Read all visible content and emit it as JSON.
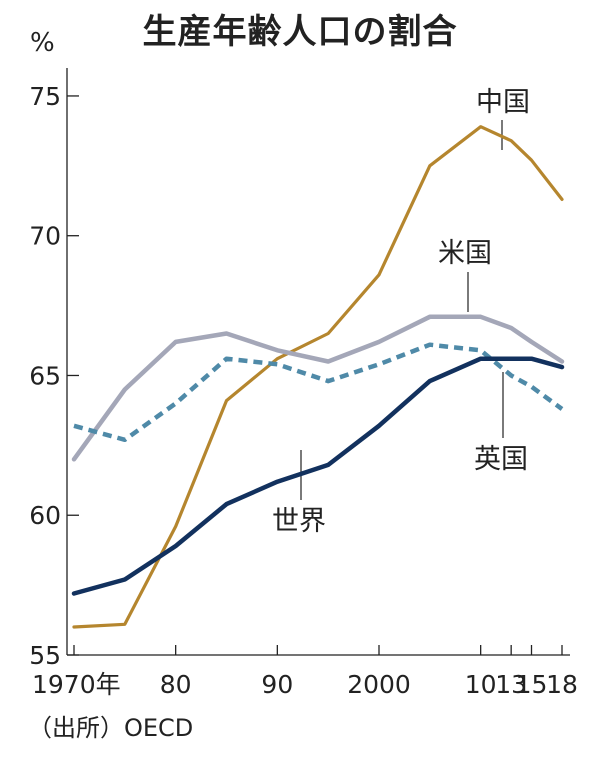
{
  "title": "生産年齢人口の割合",
  "unit": "%",
  "source": "（出所）OECD",
  "chart_data": {
    "type": "line",
    "title": "生産年齢人口の割合",
    "ylabel": "%",
    "xlabel": "",
    "x": [
      1970,
      1975,
      1980,
      1985,
      1990,
      1995,
      2000,
      2005,
      2010,
      2013,
      2015,
      2018
    ],
    "x_ticks": [
      1970,
      1980,
      1990,
      2000,
      2010,
      2013,
      2015,
      2018
    ],
    "x_tick_labels": [
      "1970年",
      "80",
      "90",
      "2000",
      "10",
      "13",
      "15",
      "18"
    ],
    "ylim": [
      55,
      76
    ],
    "y_ticks": [
      55,
      60,
      65,
      70,
      75
    ],
    "y_tick_labels": [
      "55",
      "60",
      "65",
      "70",
      "75"
    ],
    "grid": false,
    "legend": "inline labels",
    "series": [
      {
        "name": "中国",
        "color": "#b5862e",
        "dash": "solid",
        "values": [
          56.0,
          56.1,
          59.6,
          64.1,
          65.6,
          66.5,
          68.6,
          72.5,
          73.9,
          73.4,
          72.7,
          71.3
        ]
      },
      {
        "name": "米国",
        "color": "#a4a7b8",
        "dash": "solid",
        "values": [
          62.0,
          64.5,
          66.2,
          66.5,
          65.9,
          65.5,
          66.2,
          67.1,
          67.1,
          66.7,
          66.2,
          65.5
        ]
      },
      {
        "name": "英国",
        "color": "#4f8aa8",
        "dash": "dashed",
        "values": [
          63.2,
          62.7,
          64.0,
          65.6,
          65.4,
          64.8,
          65.4,
          66.1,
          65.9,
          65.0,
          64.6,
          63.8
        ]
      },
      {
        "name": "世界",
        "color": "#12315e",
        "dash": "solid",
        "values": [
          57.2,
          57.7,
          58.9,
          60.4,
          61.2,
          61.8,
          63.2,
          64.8,
          65.6,
          65.6,
          65.6,
          65.3
        ]
      }
    ]
  }
}
